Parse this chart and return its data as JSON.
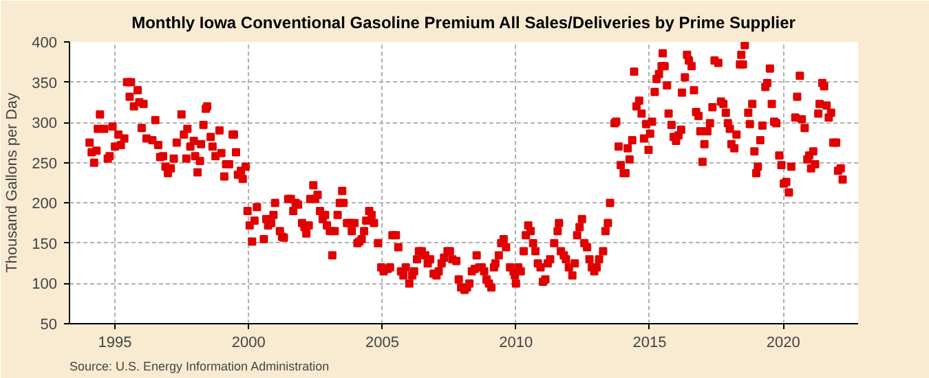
{
  "chart_data": {
    "type": "scatter",
    "title": "Monthly Iowa Conventional Gasoline Premium All Sales/Deliveries by Prime Supplier",
    "ylabel": "Thousand Gallons per Day",
    "annotations": [
      "Source: U.S. Energy Information Administration"
    ],
    "xlim": [
      1993.3,
      2022.8
    ],
    "ylim": [
      50,
      400
    ],
    "xticks": [
      1995,
      2000,
      2005,
      2010,
      2015,
      2020
    ],
    "yticks": [
      50,
      100,
      150,
      200,
      250,
      300,
      350,
      400
    ],
    "grid": true,
    "marker": "square",
    "series": [
      {
        "color": "#e00000",
        "x": [
          1994.05,
          1994.13,
          1994.22,
          1994.31,
          1994.44,
          1994.36,
          1994.6,
          1994.73,
          1994.8,
          1994.91,
          1995.0,
          1995.13,
          1995.22,
          1995.35,
          1995.45,
          1995.6,
          1995.55,
          1995.71,
          1995.85,
          1995.91,
          1996.07,
          1996.0,
          1996.18,
          1996.4,
          1996.51,
          1996.62,
          1996.69,
          1996.8,
          1996.89,
          1996.98,
          1997.09,
          1997.2,
          1997.31,
          1997.49,
          1997.58,
          1997.71,
          1997.67,
          1997.82,
          1997.95,
          1998.0,
          1998.09,
          1998.18,
          1998.22,
          1998.31,
          1998.4,
          1998.45,
          1998.58,
          1998.65,
          1998.76,
          1998.91,
          1998.98,
          1999.09,
          1999.16,
          1999.27,
          1999.4,
          1999.45,
          1999.53,
          1999.6,
          1999.71,
          1999.78,
          1999.89,
          1999.96,
          2000.04,
          2000.13,
          2000.22,
          2000.31,
          2000.57,
          2000.66,
          2000.73,
          2000.84,
          2000.93,
          2000.99,
          2001.17,
          2001.25,
          2001.32,
          2001.48,
          2001.58,
          2001.67,
          2001.76,
          2001.85,
          2002.0,
          2002.09,
          2002.16,
          2002.25,
          2002.31,
          2002.42,
          2002.49,
          2002.58,
          2002.67,
          2002.77,
          2002.86,
          2002.93,
          2003.04,
          2003.13,
          2003.22,
          2003.33,
          2003.41,
          2003.5,
          2003.55,
          2003.68,
          2003.77,
          2003.86,
          2003.96,
          2004.07,
          2004.14,
          2004.23,
          2004.32,
          2004.4,
          2004.51,
          2004.6,
          2004.69,
          2004.84,
          2004.96,
          2005.05,
          2005.2,
          2005.29,
          2005.38,
          2005.51,
          2005.6,
          2005.7,
          2005.79,
          2005.88,
          2006.01,
          2006.12,
          2006.19,
          2006.3,
          2006.37,
          2006.48,
          2006.61,
          2006.7,
          2006.79,
          2006.92,
          2007.03,
          2007.11,
          2007.22,
          2007.31,
          2007.44,
          2007.53,
          2007.62,
          2007.77,
          2007.86,
          2007.95,
          2008.08,
          2008.17,
          2008.26,
          2008.35,
          2008.46,
          2008.53,
          2008.63,
          2008.72,
          2008.81,
          2008.9,
          2008.99,
          2009.08,
          2009.18,
          2009.23,
          2009.36,
          2009.45,
          2009.54,
          2009.63,
          2009.78,
          2009.91,
          2009.96,
          2010.0,
          2010.09,
          2010.18,
          2010.29,
          2010.37,
          2010.46,
          2010.55,
          2010.64,
          2010.73,
          2010.82,
          2010.92,
          2011.01,
          2011.1,
          2011.19,
          2011.28,
          2011.43,
          2011.56,
          2011.61,
          2011.68,
          2011.79,
          2011.87,
          2011.98,
          2012.11,
          2012.2,
          2012.29,
          2012.38,
          2012.47,
          2012.56,
          2012.66,
          2012.75,
          2012.84,
          2012.93,
          2013.02,
          2013.11,
          2013.26,
          2013.35,
          2013.44,
          2013.52,
          2013.69,
          2013.75,
          2013.84,
          2013.92,
          2014.03,
          2014.1,
          2014.18,
          2014.25,
          2014.35,
          2014.42,
          2014.51,
          2014.61,
          2014.7,
          2014.79,
          2014.87,
          2014.96,
          2015.02,
          2015.09,
          2015.19,
          2015.26,
          2015.35,
          2015.45,
          2015.49,
          2015.56,
          2015.65,
          2015.71,
          2015.82,
          2015.9,
          2015.99,
          2016.08,
          2016.18,
          2016.21,
          2016.32,
          2016.4,
          2016.47,
          2016.57,
          2016.66,
          2016.74,
          2016.83,
          2016.9,
          2016.98,
          2017.05,
          2017.16,
          2017.26,
          2017.35,
          2017.43,
          2017.57,
          2017.67,
          2017.76,
          2017.85,
          2017.93,
          2018.0,
          2018.06,
          2018.17,
          2018.25,
          2018.38,
          2018.43,
          2018.49,
          2018.56,
          2018.69,
          2018.75,
          2018.84,
          2018.92,
          2018.99,
          2019.05,
          2019.14,
          2019.22,
          2019.33,
          2019.4,
          2019.5,
          2019.57,
          2019.66,
          2019.74,
          2019.85,
          2019.93,
          2020.02,
          2020.11,
          2020.21,
          2020.3,
          2020.45,
          2020.52,
          2020.62,
          2020.69,
          2020.8,
          2020.9,
          2020.97,
          2021.04,
          2021.12,
          2021.19,
          2021.31,
          2021.36,
          2021.46,
          2021.53,
          2021.62,
          2021.7,
          2021.79,
          2021.87,
          2021.98,
          2022.05,
          2022.15,
          2022.22
        ],
        "values": [
          275,
          263,
          250,
          265,
          310,
          292,
          292,
          255,
          258,
          295,
          270,
          285,
          272,
          280,
          350,
          350,
          332,
          320,
          340,
          325,
          323,
          293,
          280,
          278,
          303,
          272,
          257,
          258,
          245,
          237,
          243,
          255,
          275,
          310,
          285,
          292,
          255,
          270,
          277,
          258,
          238,
          252,
          273,
          297,
          317,
          320,
          282,
          270,
          258,
          290,
          262,
          233,
          248,
          248,
          285,
          285,
          263,
          235,
          240,
          230,
          245,
          190,
          172,
          152,
          178,
          195,
          155,
          180,
          172,
          175,
          185,
          200,
          165,
          158,
          157,
          205,
          205,
          190,
          200,
          198,
          175,
          170,
          162,
          172,
          205,
          222,
          205,
          210,
          190,
          180,
          185,
          172,
          165,
          135,
          165,
          185,
          200,
          215,
          200,
          175,
          175,
          165,
          175,
          150,
          152,
          155,
          165,
          178,
          190,
          185,
          175,
          150,
          120,
          115,
          118,
          120,
          160,
          160,
          145,
          115,
          110,
          120,
          100,
          110,
          115,
          130,
          140,
          140,
          135,
          125,
          130,
          112,
          110,
          115,
          125,
          132,
          140,
          140,
          130,
          128,
          105,
          95,
          92,
          95,
          100,
          115,
          118,
          135,
          120,
          120,
          115,
          105,
          100,
          95,
          120,
          125,
          135,
          150,
          155,
          145,
          120,
          115,
          110,
          100,
          120,
          115,
          140,
          160,
          172,
          165,
          150,
          140,
          125,
          120,
          102,
          105,
          125,
          130,
          150,
          165,
          175,
          140,
          135,
          130,
          120,
          110,
          125,
          160,
          170,
          180,
          150,
          145,
          130,
          120,
          115,
          120,
          130,
          140,
          165,
          175,
          200,
          299,
          301,
          270,
          247,
          237,
          237,
          268,
          254,
          278,
          363,
          320,
          327,
          311,
          280,
          298,
          266,
          286,
          301,
          338,
          354,
          360,
          370,
          386,
          370,
          346,
          311,
          297,
          282,
          277,
          284,
          291,
          337,
          356,
          384,
          377,
          370,
          340,
          313,
          308,
          289,
          251,
          273,
          289,
          299,
          319,
          377,
          374,
          326,
          323,
          312,
          299,
          292,
          273,
          268,
          285,
          372,
          384,
          372,
          396,
          312,
          298,
          323,
          264,
          237,
          245,
          278,
          296,
          344,
          349,
          367,
          323,
          301,
          299,
          259,
          247,
          224,
          226,
          213,
          245,
          306,
          332,
          358,
          304,
          293,
          254,
          259,
          243,
          264,
          248,
          311,
          323,
          349,
          345,
          321,
          306,
          312,
          275,
          275,
          240,
          243,
          229
        ]
      }
    ]
  }
}
